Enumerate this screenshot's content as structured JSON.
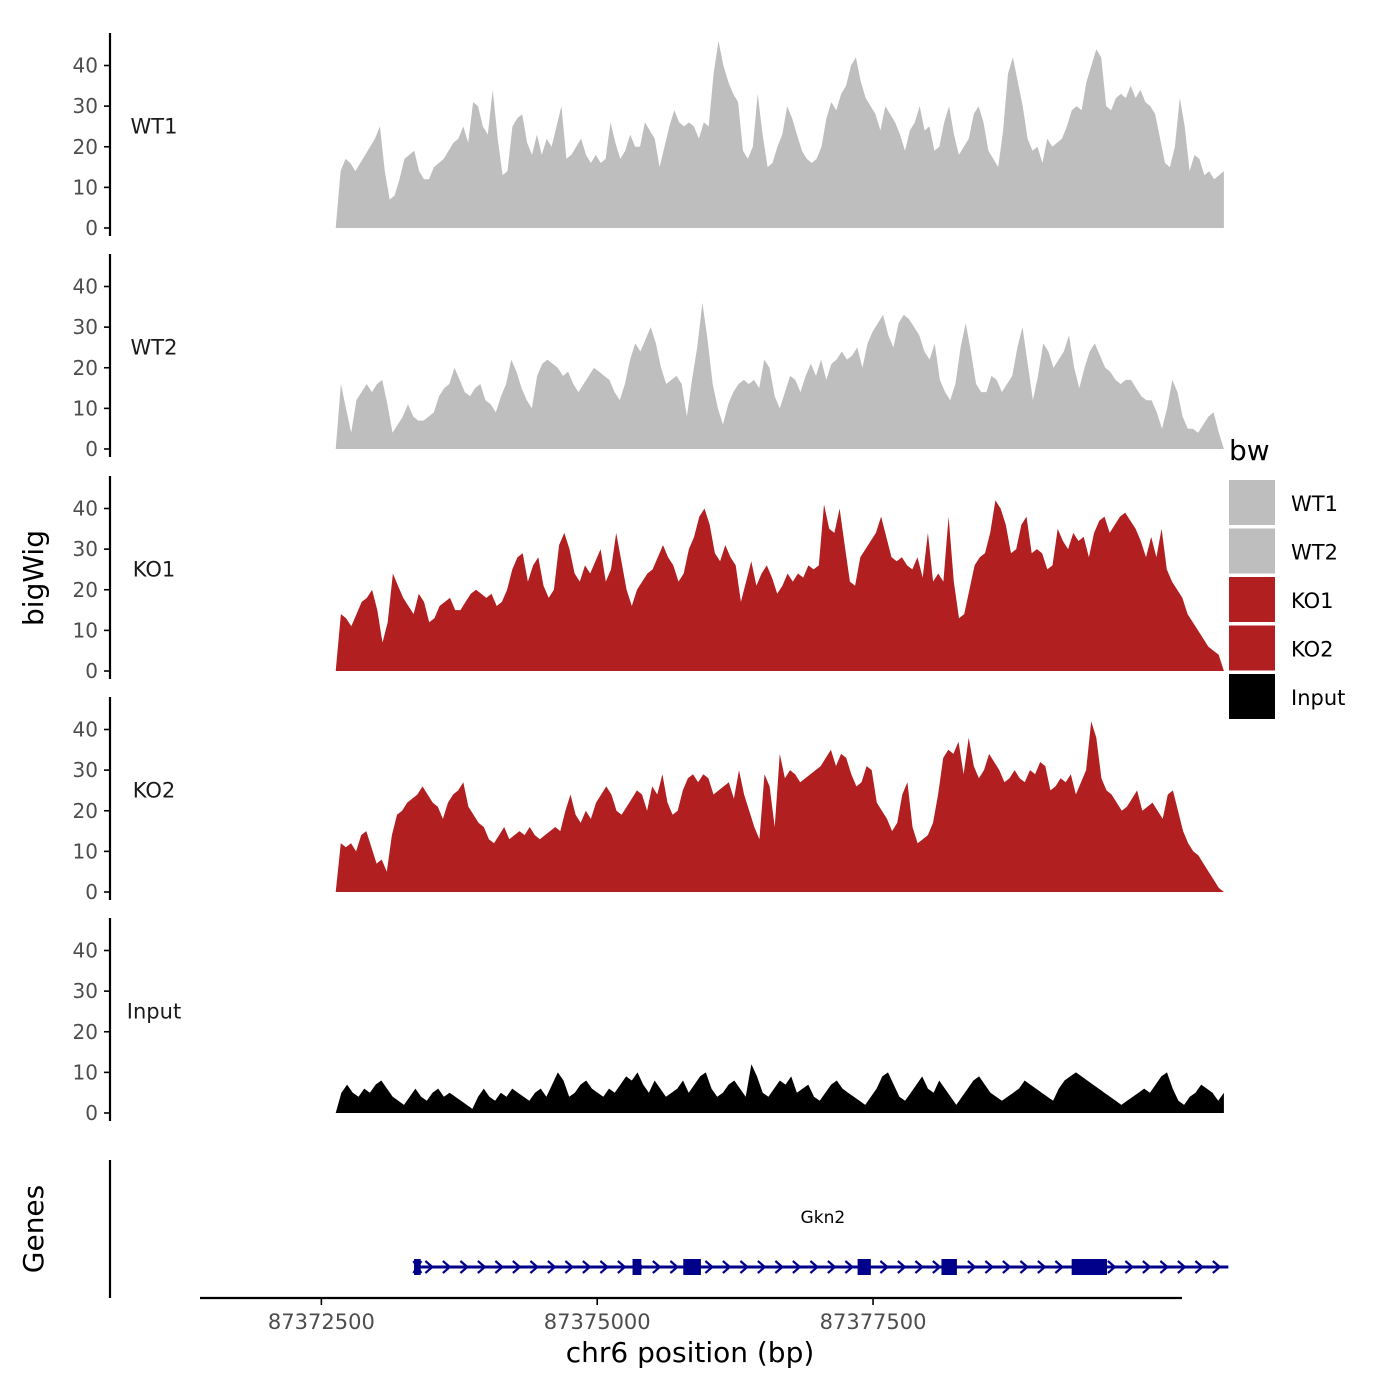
{
  "chart_data": {
    "type": "area",
    "ylabel": "bigWig",
    "xlabel": "chr6 position (bp)",
    "legend_title": "bw",
    "legend_position": "right",
    "colors": {
      "WT": "#bebebe",
      "KO": "#b11f21",
      "Input": "#000000",
      "gene": "#00008b"
    },
    "x_range": [
      87371400,
      87380300
    ],
    "y_range": [
      0,
      48
    ],
    "y_ticks": [
      "0",
      "10",
      "20",
      "30",
      "40"
    ],
    "x_ticks": [
      {
        "value": 87372500,
        "label": "87372500"
      },
      {
        "value": 87375000,
        "label": "87375000"
      },
      {
        "value": 87377500,
        "label": "87377500"
      }
    ],
    "track_start": 87372630,
    "track_end": 87380680,
    "series": [
      {
        "name": "WT1",
        "color": "#bebebe",
        "values": [
          0,
          14,
          17,
          16,
          14,
          16,
          18,
          20,
          22,
          25,
          14,
          7,
          8,
          12,
          17,
          18,
          19,
          14,
          12,
          12,
          15,
          16,
          17,
          19,
          21,
          22,
          25,
          21,
          31,
          30,
          25,
          23,
          34,
          22,
          13,
          14,
          25,
          27,
          28,
          21,
          18,
          23,
          18,
          22,
          20,
          25,
          30,
          17,
          18,
          20,
          22,
          18,
          16,
          18,
          16,
          17,
          26,
          21,
          17,
          19,
          23,
          20,
          20,
          26,
          24,
          22,
          15,
          20,
          25,
          29,
          26,
          25,
          26,
          25,
          22,
          26,
          25,
          38,
          46,
          40,
          36,
          33,
          31,
          19,
          17,
          20,
          33,
          23,
          15,
          16,
          20,
          23,
          30,
          27,
          23,
          19,
          17,
          16,
          17,
          20,
          27,
          31,
          29,
          33,
          35,
          40,
          42,
          36,
          32,
          30,
          28,
          24,
          30,
          28,
          26,
          23,
          19,
          24,
          26,
          30,
          24,
          25,
          19,
          20,
          26,
          30,
          23,
          18,
          20,
          22,
          28,
          30,
          26,
          19,
          17,
          15,
          24,
          38,
          42,
          36,
          30,
          22,
          19,
          20,
          16,
          22,
          20,
          21,
          22,
          25,
          29,
          30,
          29,
          36,
          40,
          44,
          42,
          30,
          29,
          32,
          33,
          32,
          35,
          32,
          34,
          31,
          30,
          28,
          22,
          16,
          15,
          20,
          32,
          25,
          14,
          18,
          17,
          13,
          14,
          12,
          13,
          14
        ]
      },
      {
        "name": "WT2",
        "color": "#bebebe",
        "values": [
          0,
          16,
          10,
          4,
          12,
          14,
          16,
          14,
          16,
          17,
          11,
          4,
          6,
          8,
          11,
          8,
          7,
          7,
          8,
          9,
          13,
          15,
          16,
          20,
          17,
          14,
          13,
          15,
          16,
          12,
          11,
          9,
          13,
          16,
          22,
          19,
          15,
          12,
          10,
          18,
          21,
          22,
          21,
          20,
          18,
          19,
          16,
          14,
          16,
          18,
          20,
          19,
          18,
          17,
          14,
          12,
          16,
          22,
          26,
          24,
          27,
          30,
          26,
          20,
          16,
          17,
          18,
          16,
          8,
          17,
          25,
          36,
          27,
          16,
          10,
          6,
          11,
          14,
          16,
          17,
          16,
          17,
          15,
          22,
          20,
          13,
          10,
          14,
          18,
          17,
          14,
          18,
          21,
          18,
          22,
          17,
          21,
          22,
          24,
          22,
          23,
          25,
          20,
          26,
          29,
          31,
          33,
          28,
          25,
          31,
          33,
          32,
          30,
          28,
          24,
          22,
          26,
          17,
          14,
          12,
          16,
          25,
          31,
          24,
          16,
          14,
          14,
          18,
          17,
          14,
          16,
          18,
          25,
          30,
          21,
          12,
          18,
          26,
          24,
          20,
          22,
          24,
          28,
          20,
          15,
          20,
          24,
          26,
          23,
          20,
          19,
          17,
          16,
          17,
          17,
          15,
          13,
          12,
          12,
          9,
          5,
          10,
          17,
          14,
          8,
          5,
          5,
          4,
          6,
          8,
          9,
          4,
          0
        ]
      },
      {
        "name": "KO1",
        "color": "#b11f21",
        "values": [
          0,
          14,
          13,
          11,
          14,
          17,
          18,
          20,
          15,
          7,
          12,
          24,
          21,
          18,
          16,
          14,
          19,
          17,
          12,
          13,
          16,
          17,
          18,
          15,
          15,
          17,
          19,
          20,
          19,
          18,
          19,
          16,
          17,
          20,
          25,
          28,
          29,
          22,
          26,
          28,
          21,
          18,
          20,
          31,
          34,
          30,
          24,
          22,
          26,
          24,
          27,
          30,
          22,
          25,
          34,
          27,
          20,
          16,
          20,
          22,
          24,
          25,
          28,
          31,
          28,
          26,
          22,
          24,
          30,
          33,
          38,
          40,
          36,
          29,
          27,
          31,
          28,
          26,
          17,
          22,
          27,
          21,
          24,
          26,
          23,
          19,
          21,
          24,
          22,
          24,
          23,
          26,
          25,
          26,
          41,
          35,
          34,
          40,
          31,
          22,
          21,
          28,
          30,
          32,
          34,
          38,
          33,
          28,
          27,
          28,
          26,
          25,
          28,
          23,
          34,
          22,
          24,
          22,
          38,
          22,
          13,
          14,
          20,
          26,
          28,
          29,
          34,
          42,
          40,
          36,
          29,
          30,
          36,
          38,
          29,
          30,
          29,
          25,
          26,
          35,
          32,
          30,
          34,
          32,
          33,
          28,
          34,
          37,
          38,
          34,
          36,
          38,
          39,
          37,
          35,
          32,
          28,
          33,
          28,
          35,
          25,
          22,
          20,
          18,
          14,
          12,
          10,
          8,
          6,
          5,
          4,
          0
        ]
      },
      {
        "name": "KO2",
        "color": "#b11f21",
        "values": [
          0,
          12,
          11,
          12,
          10,
          14,
          15,
          11,
          7,
          8,
          5,
          14,
          19,
          20,
          22,
          23,
          24,
          26,
          24,
          22,
          21,
          18,
          22,
          24,
          25,
          27,
          21,
          19,
          17,
          16,
          13,
          12,
          14,
          16,
          13,
          14,
          15,
          14,
          16,
          14,
          13,
          14,
          15,
          16,
          15,
          20,
          24,
          19,
          17,
          20,
          18,
          22,
          24,
          26,
          24,
          20,
          19,
          21,
          23,
          25,
          24,
          20,
          26,
          24,
          29,
          22,
          19,
          20,
          25,
          28,
          29,
          27,
          29,
          28,
          24,
          25,
          26,
          27,
          23,
          30,
          24,
          20,
          16,
          13,
          29,
          26,
          16,
          34,
          28,
          30,
          29,
          27,
          28,
          29,
          30,
          31,
          33,
          35,
          31,
          34,
          33,
          29,
          26,
          27,
          31,
          30,
          22,
          20,
          18,
          15,
          17,
          24,
          27,
          16,
          12,
          13,
          14,
          17,
          24,
          33,
          35,
          34,
          37,
          29,
          38,
          31,
          28,
          30,
          34,
          32,
          30,
          27,
          28,
          30,
          28,
          27,
          30,
          29,
          32,
          31,
          25,
          26,
          28,
          27,
          29,
          24,
          27,
          30,
          42,
          38,
          28,
          25,
          24,
          22,
          20,
          21,
          23,
          25,
          20,
          21,
          22,
          20,
          18,
          24,
          25,
          20,
          15,
          12,
          10,
          9,
          7,
          5,
          3,
          1,
          0
        ]
      },
      {
        "name": "Input",
        "color": "#000000",
        "values": [
          0,
          5,
          7,
          5,
          4,
          6,
          5,
          7,
          8,
          6,
          4,
          3,
          2,
          4,
          6,
          4,
          3,
          5,
          6,
          4,
          5,
          4,
          3,
          2,
          1,
          4,
          6,
          4,
          3,
          5,
          4,
          6,
          5,
          4,
          3,
          5,
          6,
          4,
          7,
          10,
          8,
          4,
          5,
          7,
          8,
          6,
          5,
          4,
          6,
          5,
          7,
          9,
          8,
          10,
          7,
          5,
          8,
          6,
          4,
          5,
          6,
          8,
          5,
          7,
          9,
          10,
          6,
          4,
          5,
          7,
          8,
          6,
          4,
          12,
          9,
          5,
          4,
          6,
          8,
          7,
          9,
          5,
          6,
          7,
          4,
          3,
          5,
          7,
          8,
          6,
          5,
          4,
          3,
          2,
          4,
          6,
          9,
          10,
          7,
          4,
          3,
          5,
          7,
          9,
          6,
          5,
          8,
          6,
          4,
          2,
          4,
          6,
          8,
          9,
          7,
          5,
          4,
          3,
          4,
          5,
          6,
          8,
          7,
          6,
          5,
          4,
          3,
          6,
          8,
          9,
          10,
          9,
          8,
          7,
          6,
          5,
          4,
          3,
          2,
          3,
          4,
          5,
          6,
          5,
          7,
          9,
          10,
          6,
          3,
          2,
          4,
          5,
          7,
          6,
          5,
          3,
          5
        ]
      }
    ],
    "gene": {
      "name": "Gkn2",
      "start": 87373370,
      "end": 87380720,
      "exons": [
        [
          87373340,
          87373400
        ],
        [
          87375320,
          87375400
        ],
        [
          87375780,
          87375940
        ],
        [
          87377360,
          87377480
        ],
        [
          87378120,
          87378260
        ],
        [
          87379300,
          87379620
        ]
      ]
    },
    "genes_label": "Genes"
  }
}
